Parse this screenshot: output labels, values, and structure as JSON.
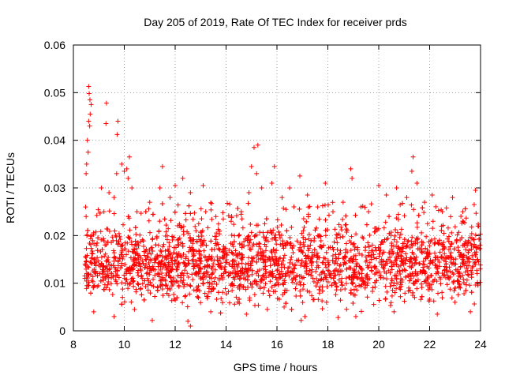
{
  "chart_data": {
    "type": "scatter",
    "title": "Day 205 of 2019, Rate Of TEC Index for receiver prds",
    "xlabel": "GPS time / hours",
    "ylabel": "ROTI / TECUs",
    "xlim": [
      8,
      24
    ],
    "ylim": [
      0,
      0.06
    ],
    "xticks": [
      8,
      10,
      12,
      14,
      16,
      18,
      20,
      22,
      24
    ],
    "xtick_labels": [
      "8",
      "10",
      "12",
      "14",
      "16",
      "18",
      "20",
      "22",
      "24"
    ],
    "yticks": [
      0,
      0.01,
      0.02,
      0.03,
      0.04,
      0.05,
      0.06
    ],
    "ytick_labels": [
      "0",
      "0.01",
      "0.02",
      "0.03",
      "0.04",
      "0.05",
      "0.06"
    ],
    "grid": true,
    "marker": "+",
    "color": "#ff0000",
    "series": [
      {
        "name": "ROTI",
        "points": [
          [
            8.6,
            0.0513
          ],
          [
            8.62,
            0.0498
          ],
          [
            8.65,
            0.0485
          ],
          [
            8.7,
            0.0475
          ],
          [
            8.66,
            0.0455
          ],
          [
            8.6,
            0.044
          ],
          [
            8.64,
            0.043
          ],
          [
            8.55,
            0.04
          ],
          [
            8.58,
            0.0375
          ],
          [
            8.52,
            0.035
          ],
          [
            8.5,
            0.033
          ],
          [
            8.48,
            0.026
          ],
          [
            8.5,
            0.024
          ],
          [
            8.53,
            0.02
          ],
          [
            9.3,
            0.0478
          ],
          [
            9.28,
            0.0435
          ],
          [
            9.75,
            0.044
          ],
          [
            9.72,
            0.0412
          ],
          [
            9.9,
            0.035
          ],
          [
            10.0,
            0.0335
          ],
          [
            10.1,
            0.034
          ],
          [
            10.2,
            0.0365
          ],
          [
            10.15,
            0.032
          ],
          [
            9.7,
            0.033
          ],
          [
            9.6,
            0.028
          ],
          [
            9.4,
            0.029
          ],
          [
            9.1,
            0.03
          ],
          [
            9.2,
            0.025
          ],
          [
            10.3,
            0.03
          ],
          [
            10.5,
            0.025
          ],
          [
            11.0,
            0.027
          ],
          [
            11.5,
            0.0345
          ],
          [
            11.4,
            0.03
          ],
          [
            11.8,
            0.028
          ],
          [
            12.0,
            0.0305
          ],
          [
            12.3,
            0.032
          ],
          [
            12.6,
            0.029
          ],
          [
            13.1,
            0.0305
          ],
          [
            13.2,
            0.025
          ],
          [
            13.6,
            0.024
          ],
          [
            14.2,
            0.023
          ],
          [
            14.6,
            0.025
          ],
          [
            14.9,
            0.029
          ],
          [
            15.1,
            0.0385
          ],
          [
            15.25,
            0.039
          ],
          [
            15.0,
            0.0345
          ],
          [
            15.2,
            0.033
          ],
          [
            15.4,
            0.03
          ],
          [
            15.9,
            0.0345
          ],
          [
            15.8,
            0.031
          ],
          [
            16.2,
            0.028
          ],
          [
            16.5,
            0.03
          ],
          [
            16.9,
            0.0325
          ],
          [
            17.2,
            0.0285
          ],
          [
            17.6,
            0.026
          ],
          [
            17.9,
            0.031
          ],
          [
            18.2,
            0.025
          ],
          [
            18.6,
            0.027
          ],
          [
            18.9,
            0.034
          ],
          [
            18.95,
            0.032
          ],
          [
            19.3,
            0.026
          ],
          [
            19.6,
            0.025
          ],
          [
            20.0,
            0.0305
          ],
          [
            20.3,
            0.0285
          ],
          [
            20.7,
            0.03
          ],
          [
            21.1,
            0.028
          ],
          [
            21.35,
            0.0365
          ],
          [
            21.3,
            0.0335
          ],
          [
            21.5,
            0.031
          ],
          [
            21.8,
            0.027
          ],
          [
            22.1,
            0.0285
          ],
          [
            22.5,
            0.025
          ],
          [
            22.9,
            0.028
          ],
          [
            23.3,
            0.025
          ],
          [
            23.8,
            0.0295
          ],
          [
            23.75,
            0.0265
          ],
          [
            23.9,
            0.022
          ],
          [
            12.6,
            0.001
          ],
          [
            12.5,
            0.002
          ],
          [
            16.95,
            0.0022
          ],
          [
            17.1,
            0.003
          ],
          [
            11.1,
            0.0022
          ],
          [
            8.8,
            0.004
          ],
          [
            10.4,
            0.0045
          ],
          [
            13.4,
            0.004
          ],
          [
            14.8,
            0.0035
          ],
          [
            19.1,
            0.003
          ],
          [
            20.6,
            0.004
          ],
          [
            22.3,
            0.0035
          ],
          [
            23.6,
            0.004
          ],
          [
            18.4,
            0.0028
          ],
          [
            9.6,
            0.003
          ]
        ]
      }
    ],
    "dense_band": {
      "x_range": [
        8.45,
        24
      ],
      "typical_min": 0.003,
      "typical_max": 0.022,
      "typical_center": 0.012
    }
  }
}
